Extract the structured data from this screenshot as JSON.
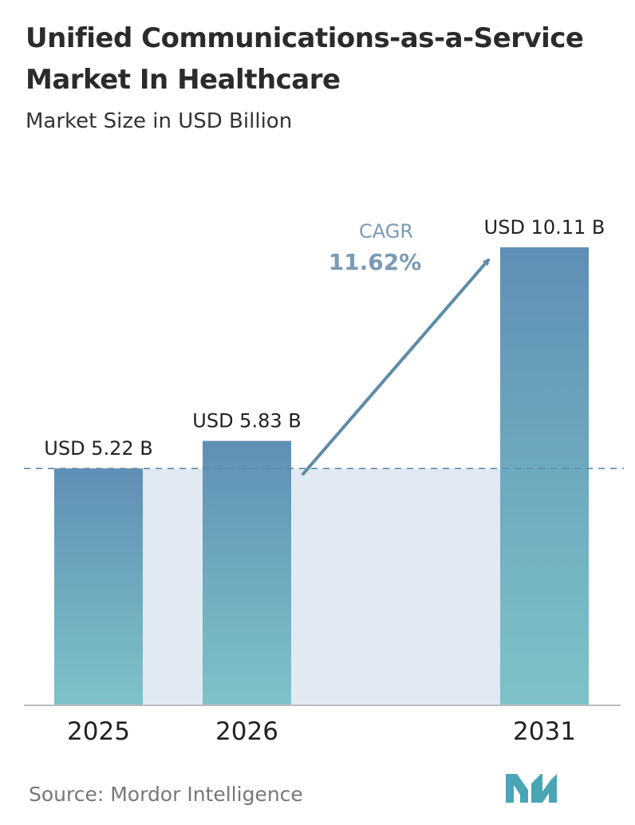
{
  "title": "Unified Communications-as-a-Service Market In Healthcare",
  "subtitle": "Market Size in USD Billion",
  "source": "Source: Mordor Intelligence",
  "colors": {
    "bar_top": "#5f8fb5",
    "bar_bottom": "#7ec3c8",
    "band": "#e1e9f2",
    "reference_line": "#5d8ba8",
    "axis": "#bcbcbc",
    "cagr_text": "#7a9ab4",
    "cagr_arrow": "#5d8ba8",
    "logo": "#4aa5b5"
  },
  "chart_data": {
    "type": "bar",
    "title": "Unified Communications-as-a-Service Market In Healthcare",
    "subtitle": "Market Size in USD Billion",
    "categories": [
      "2025",
      "2026",
      "2031"
    ],
    "values": [
      5.22,
      5.83,
      10.11
    ],
    "value_labels": [
      "USD 5.22 B",
      "USD 5.83 B",
      "USD 10.11 B"
    ],
    "ylim": [
      0,
      10.11
    ],
    "xlabel": "",
    "ylabel": "",
    "grid": false,
    "legend": "none",
    "cagr": {
      "label": "CAGR",
      "value": "11.62%"
    }
  }
}
